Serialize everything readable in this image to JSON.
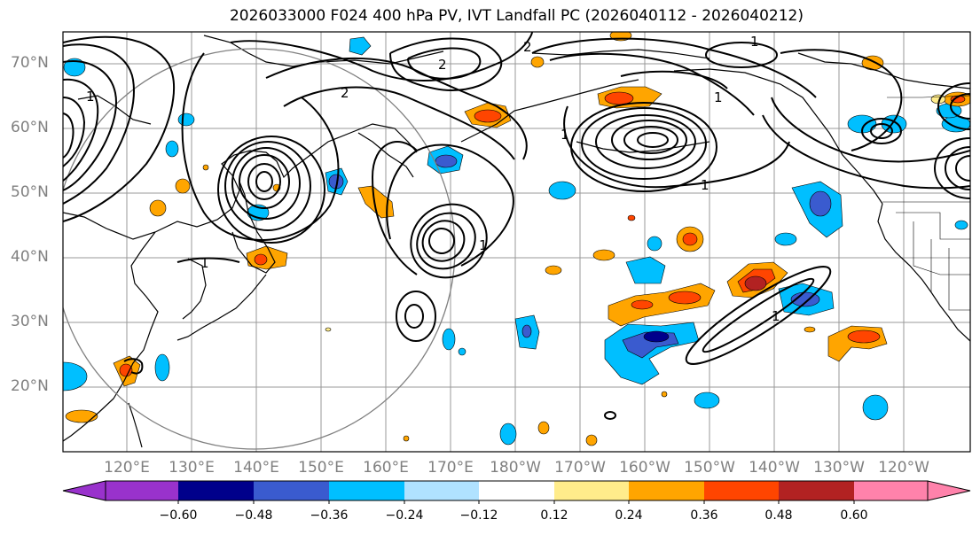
{
  "title": "2026033000 F024 400 hPa PV, IVT Landfall PC (2026040112 - 2026040212)",
  "latitude_labels": [
    "70°N",
    "60°N",
    "50°N",
    "40°N",
    "30°N",
    "20°N"
  ],
  "longitude_labels": [
    "120°E",
    "130°E",
    "140°E",
    "150°E",
    "160°E",
    "170°E",
    "180°W",
    "170°W",
    "160°W",
    "150°W",
    "140°W",
    "130°W",
    "120°W"
  ],
  "colorbar": {
    "tick_labels": [
      "−0.60",
      "−0.48",
      "−0.36",
      "−0.24",
      "−0.12",
      "0.12",
      "0.24",
      "0.36",
      "0.48",
      "0.60"
    ],
    "colors": [
      "#9932cc",
      "#00008b",
      "#3a5bcf",
      "#00bfff",
      "#b0e2ff",
      "#ffffff",
      "#ffec8b",
      "#ffa500",
      "#ff4500",
      "#b22222",
      "#ff82ab"
    ]
  },
  "contour_labels": [
    "1",
    "2",
    "1",
    "2",
    "1",
    "1",
    "2",
    "1",
    "1",
    "1",
    "1"
  ]
}
